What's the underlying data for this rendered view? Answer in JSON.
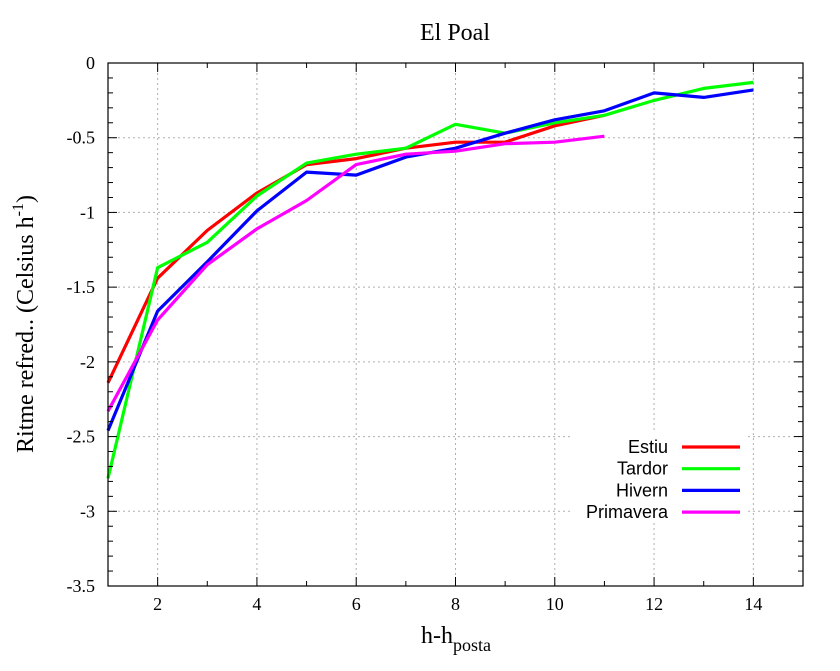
{
  "chart_data": {
    "type": "line",
    "title": "El Poal",
    "xlabel": {
      "main": "h-h",
      "sub": "posta"
    },
    "ylabel": {
      "main": "Ritme refred.. (Celsius h",
      "sup": "-1",
      "close": ")"
    },
    "xlim": [
      1,
      15
    ],
    "ylim": [
      -3.5,
      0
    ],
    "xticks": [
      2,
      4,
      6,
      8,
      10,
      12,
      14
    ],
    "xtick_labels": [
      "2",
      "4",
      "6",
      "8",
      "10",
      "12",
      "14"
    ],
    "yticks": [
      0,
      -0.5,
      -1,
      -1.5,
      -2,
      -2.5,
      -3,
      -3.5
    ],
    "ytick_labels": [
      "0",
      "-0.5",
      "-1",
      "-1.5",
      "-2",
      "-2.5",
      "-3",
      "-3.5"
    ],
    "grid": true,
    "legend_position": "bottom-right",
    "series": [
      {
        "name": "Estiu",
        "color": "#ff0000",
        "x": [
          1,
          2,
          3,
          4,
          5,
          6,
          7,
          8,
          9,
          10,
          11
        ],
        "y": [
          -2.14,
          -1.44,
          -1.12,
          -0.87,
          -0.68,
          -0.64,
          -0.57,
          -0.53,
          -0.53,
          -0.42,
          -0.35
        ]
      },
      {
        "name": "Tardor",
        "color": "#00ff00",
        "x": [
          1,
          2,
          3,
          4,
          5,
          6,
          7,
          8,
          9,
          10,
          11,
          12,
          13,
          14
        ],
        "y": [
          -2.78,
          -1.37,
          -1.2,
          -0.89,
          -0.67,
          -0.61,
          -0.57,
          -0.41,
          -0.47,
          -0.4,
          -0.35,
          -0.25,
          -0.17,
          -0.13
        ]
      },
      {
        "name": "Hivern",
        "color": "#0000ff",
        "x": [
          1,
          2,
          3,
          4,
          5,
          6,
          7,
          8,
          9,
          10,
          11,
          12,
          13,
          14
        ],
        "y": [
          -2.46,
          -1.66,
          -1.33,
          -0.99,
          -0.73,
          -0.75,
          -0.63,
          -0.57,
          -0.47,
          -0.38,
          -0.32,
          -0.2,
          -0.23,
          -0.18
        ]
      },
      {
        "name": "Primavera",
        "color": "#ff00ff",
        "x": [
          1,
          2,
          3,
          4,
          5,
          6,
          7,
          8,
          9,
          10,
          11
        ],
        "y": [
          -2.33,
          -1.72,
          -1.35,
          -1.11,
          -0.92,
          -0.68,
          -0.61,
          -0.59,
          -0.54,
          -0.53,
          -0.49
        ]
      }
    ]
  }
}
